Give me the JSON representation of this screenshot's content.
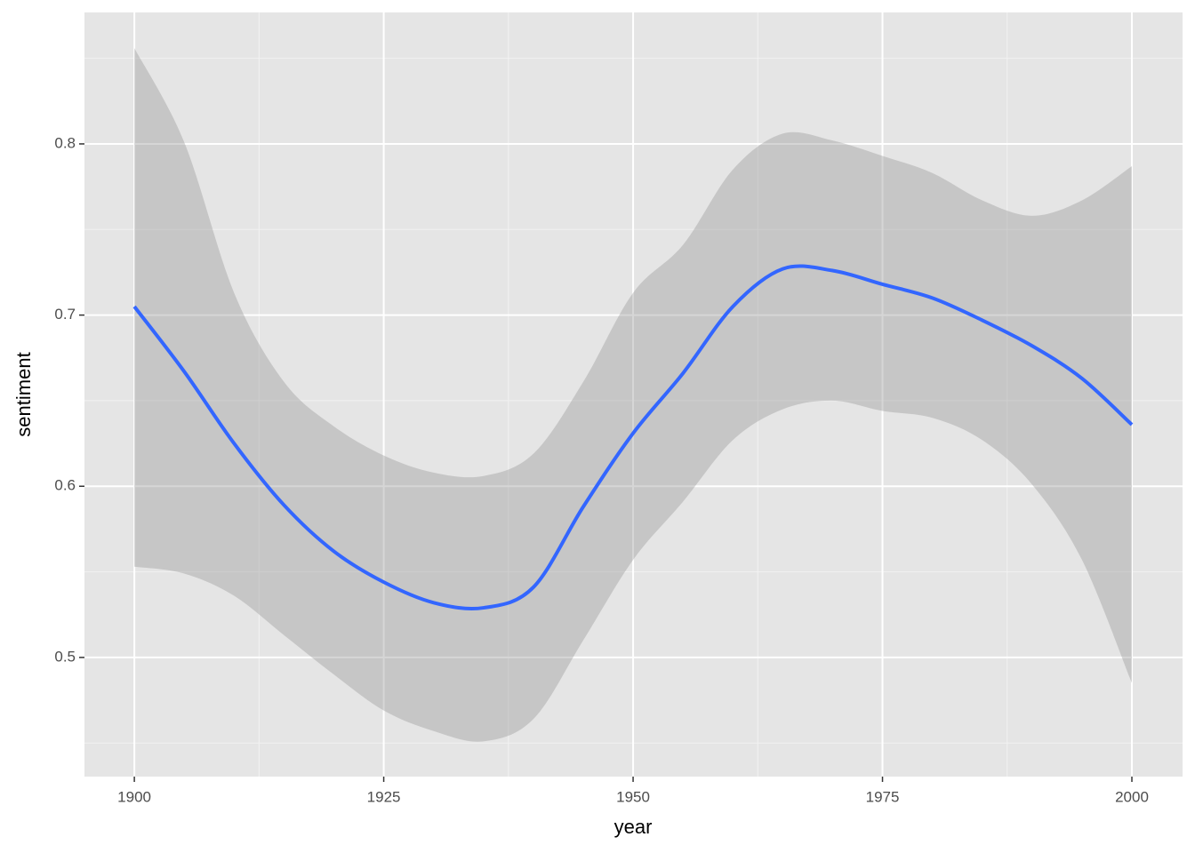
{
  "chart_data": {
    "type": "smooth",
    "x_label": "year",
    "y_label": "sentiment",
    "x": [
      1900,
      1905,
      1910,
      1915,
      1920,
      1925,
      1930,
      1935,
      1940,
      1945,
      1950,
      1955,
      1960,
      1965,
      1970,
      1975,
      1980,
      1985,
      1990,
      1995,
      2000
    ],
    "values": [
      0.705,
      0.667,
      0.625,
      0.589,
      0.562,
      0.544,
      0.532,
      0.529,
      0.541,
      0.588,
      0.631,
      0.666,
      0.705,
      0.727,
      0.726,
      0.718,
      0.71,
      0.697,
      0.682,
      0.663,
      0.636
    ],
    "upper": [
      0.856,
      0.801,
      0.713,
      0.661,
      0.635,
      0.618,
      0.608,
      0.606,
      0.619,
      0.661,
      0.713,
      0.741,
      0.785,
      0.806,
      0.802,
      0.793,
      0.783,
      0.767,
      0.758,
      0.767,
      0.787
    ],
    "lower": [
      0.553,
      0.549,
      0.536,
      0.513,
      0.49,
      0.469,
      0.457,
      0.451,
      0.464,
      0.51,
      0.557,
      0.591,
      0.627,
      0.645,
      0.65,
      0.644,
      0.64,
      0.627,
      0.601,
      0.557,
      0.485
    ],
    "line_color": "#3366ff",
    "band_color": "#999999",
    "xlim": [
      1895,
      2005.08
    ],
    "ylim": [
      0.4304,
      0.8768
    ],
    "xticks": [
      1900,
      1925,
      1950,
      1975,
      2000
    ],
    "yticks": [
      0.5,
      0.6,
      0.7,
      0.8
    ],
    "minor_xticks": [
      1912.5,
      1937.5,
      1962.5,
      1987.5
    ],
    "minor_yticks": [
      0.45,
      0.55,
      0.65,
      0.75,
      0.85
    ],
    "grid": true
  }
}
